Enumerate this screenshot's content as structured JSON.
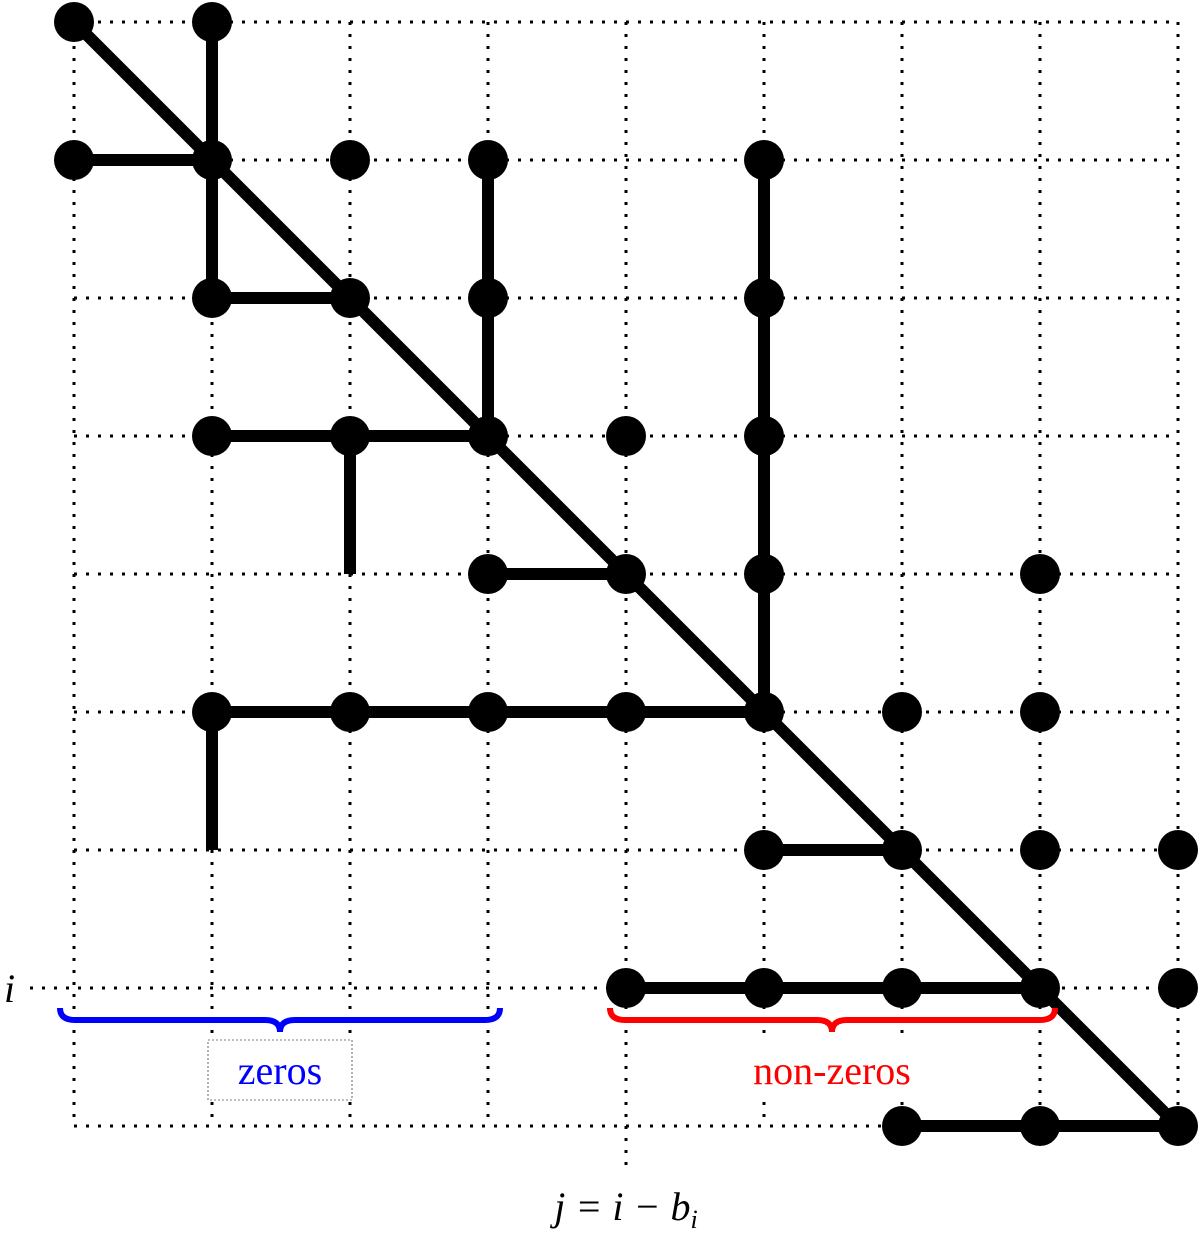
{
  "labels": {
    "row": "i",
    "zeros": "zeros",
    "nonzeros": "non-zeros",
    "column": "j = i − b",
    "column_subscript": "i"
  }
}
